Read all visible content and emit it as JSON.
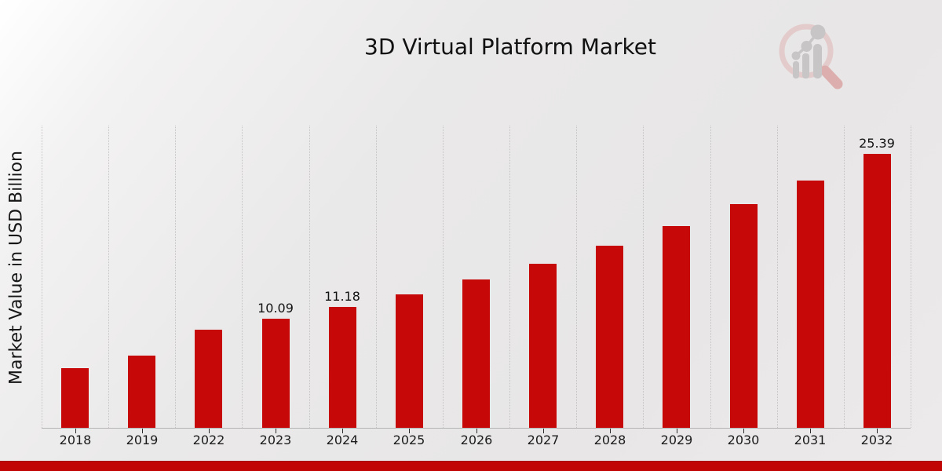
{
  "header": {
    "title": "3D Virtual Platform Market"
  },
  "axes": {
    "y_label": "Market Value in USD Billion"
  },
  "branding": {
    "logo_name": "magnifier-bar-chart-watermark-icon"
  },
  "footer": {
    "banner_color": "#c10404"
  },
  "chart_data": {
    "type": "bar",
    "title": "3D Virtual Platform Market",
    "xlabel": "",
    "ylabel": "Market Value in USD Billion",
    "categories": [
      "2018",
      "2019",
      "2022",
      "2023",
      "2024",
      "2025",
      "2026",
      "2027",
      "2028",
      "2029",
      "2030",
      "2031",
      "2032"
    ],
    "values": [
      5.5,
      6.7,
      9.11,
      10.09,
      11.18,
      12.39,
      13.73,
      15.21,
      16.86,
      18.68,
      20.7,
      22.94,
      25.39
    ],
    "data_labels": [
      null,
      null,
      null,
      "10.09",
      "11.18",
      null,
      null,
      null,
      null,
      null,
      null,
      null,
      "25.39"
    ],
    "ylim": [
      0,
      28
    ],
    "bar_color": "#c60808",
    "grid": "vertical-dotted",
    "gridline_color": "#c5c4c4",
    "legend": "none"
  }
}
